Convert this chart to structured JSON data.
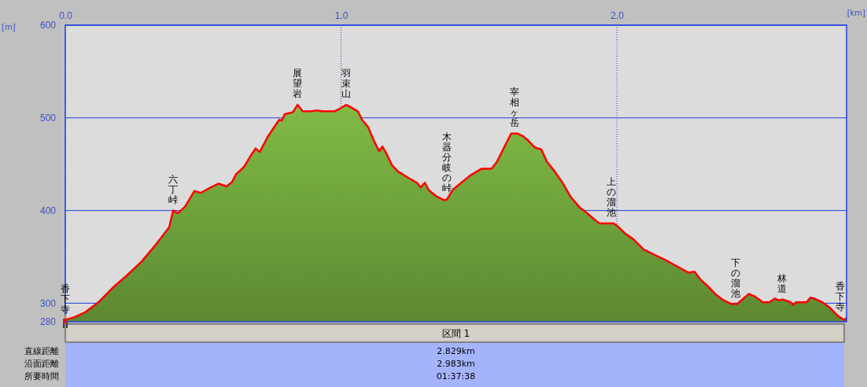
{
  "chart_data": {
    "type": "area",
    "xlabel": "[km]",
    "ylabel": "[m]",
    "xlim": [
      0,
      2.833
    ],
    "ylim": [
      280,
      600
    ],
    "xticks": [
      {
        "value": 0,
        "label": "0.0"
      },
      {
        "value": 1,
        "label": "1.0"
      },
      {
        "value": 2,
        "label": "2.0"
      }
    ],
    "yticks": [
      280,
      300,
      400,
      500,
      600
    ],
    "grid": true,
    "series": [
      {
        "color": "#6fa23c",
        "x": [
          0,
          0.034,
          0.071,
          0.12,
          0.177,
          0.22,
          0.277,
          0.325,
          0.377,
          0.391,
          0.408,
          0.434,
          0.468,
          0.491,
          0.528,
          0.556,
          0.585,
          0.605,
          0.619,
          0.648,
          0.67,
          0.69,
          0.705,
          0.733,
          0.762,
          0.776,
          0.785,
          0.796,
          0.825,
          0.842,
          0.861,
          0.89,
          0.913,
          0.933,
          0.976,
          0.996,
          1.019,
          1.038,
          1.061,
          1.076,
          1.098,
          1.118,
          1.138,
          1.15,
          1.167,
          1.184,
          1.207,
          1.24,
          1.275,
          1.289,
          1.304,
          1.318,
          1.347,
          1.375,
          1.384,
          1.407,
          1.432,
          1.469,
          1.509,
          1.546,
          1.566,
          1.603,
          1.617,
          1.64,
          1.661,
          1.68,
          1.703,
          1.726,
          1.746,
          1.775,
          1.803,
          1.832,
          1.866,
          1.889,
          1.912,
          1.937,
          1.96,
          1.989,
          2.003,
          2.031,
          2.06,
          2.097,
          2.131,
          2.174,
          2.223,
          2.26,
          2.282,
          2.302,
          2.331,
          2.36,
          2.388,
          2.417,
          2.436,
          2.459,
          2.479,
          2.502,
          2.53,
          2.553,
          2.573,
          2.588,
          2.602,
          2.63,
          2.639,
          2.65,
          2.688,
          2.702,
          2.716,
          2.745,
          2.773,
          2.802,
          2.824,
          2.833
        ],
        "values": [
          282,
          285,
          290,
          301,
          318,
          329,
          345,
          362,
          382,
          400,
          397,
          404,
          421,
          419,
          425,
          429,
          426,
          431,
          439,
          447,
          458,
          467,
          463,
          479,
          492,
          498,
          497,
          504,
          506,
          514,
          507,
          507,
          508,
          507,
          507,
          510,
          514,
          511,
          507,
          498,
          490,
          476,
          464,
          469,
          460,
          449,
          442,
          436,
          430,
          425,
          430,
          422,
          415,
          411,
          412,
          423,
          429,
          438,
          445,
          445,
          453,
          475,
          483,
          483,
          480,
          475,
          468,
          466,
          453,
          442,
          430,
          415,
          403,
          398,
          392,
          386,
          386,
          386,
          383,
          375,
          369,
          358,
          353,
          347,
          339,
          333,
          334,
          326,
          318,
          309,
          303,
          299,
          299,
          305,
          310,
          307,
          301,
          301,
          305,
          303,
          304,
          301,
          298,
          301,
          301,
          306,
          305,
          301,
          295,
          286,
          282,
          284
        ]
      }
    ],
    "annotations": [
      {
        "text": "香下寺",
        "x": 0,
        "y": 282
      },
      {
        "text": "六丁峠",
        "x": 0.391,
        "y": 400
      },
      {
        "text": "展望岩",
        "x": 0.842,
        "y": 514
      },
      {
        "text": "羽束山",
        "x": 1.019,
        "y": 514
      },
      {
        "text": "木器分岐の峠",
        "x": 1.384,
        "y": 412
      },
      {
        "text": "宰相ヶ岳",
        "x": 1.63,
        "y": 483
      },
      {
        "text": "上の溜池",
        "x": 1.98,
        "y": 386
      },
      {
        "text": "下の溜池",
        "x": 2.43,
        "y": 299
      },
      {
        "text": "林道",
        "x": 2.6,
        "y": 304
      },
      {
        "text": "香下寺",
        "x": 2.833,
        "y": 284
      },
      "区間 1",
      "直線距離",
      "2.829km",
      "沿面距離",
      "2.983km",
      "所要時間",
      "01:37:38"
    ]
  }
}
